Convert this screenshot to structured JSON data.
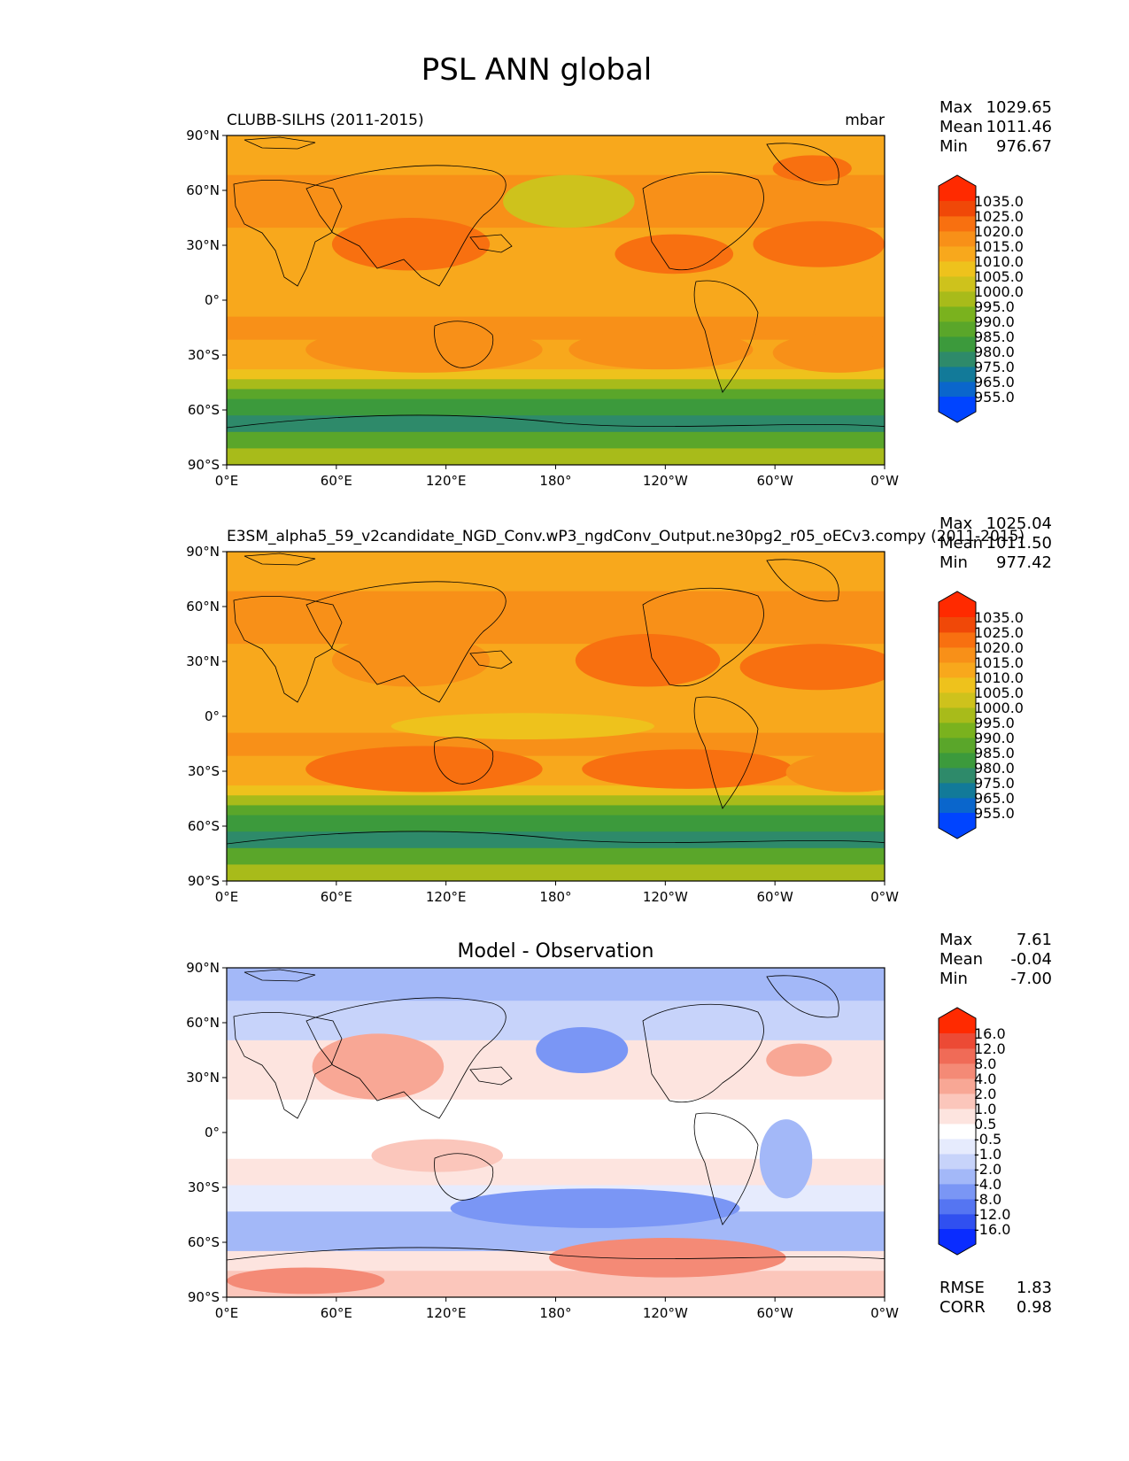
{
  "title": "PSL ANN global",
  "lon_ticks": [
    "0°E",
    "60°E",
    "120°E",
    "180°",
    "120°W",
    "60°W",
    "0°W"
  ],
  "lat_ticks": [
    "90°N",
    "60°N",
    "30°N",
    "0°",
    "30°S",
    "60°S",
    "90°S"
  ],
  "stat_labels": {
    "max": "Max",
    "mean": "Mean",
    "min": "Min",
    "rmse": "RMSE",
    "corr": "CORR"
  },
  "colors": {
    "abs_scale": [
      "#0044ff",
      "#0a66cc",
      "#127a99",
      "#2e8a6a",
      "#3c9a3c",
      "#5aa62a",
      "#7ab21e",
      "#a8bb1a",
      "#cec21c",
      "#eec21c",
      "#f8a81c",
      "#f89018",
      "#f87010",
      "#f04808",
      "#ff2a00"
    ],
    "diff_scale": [
      "#0a2cff",
      "#3050f0",
      "#5575f2",
      "#7a96f5",
      "#a3b8f8",
      "#c7d3fa",
      "#e6ebfd",
      "#ffffff",
      "#fde4df",
      "#fbc6bb",
      "#f8a795",
      "#f48a76",
      "#f06b57",
      "#ec4a35",
      "#ff2a00"
    ]
  },
  "chart_data": [
    {
      "type": "heatmap",
      "panel": "test",
      "title": "CLUBB-SILHS (2011-2015)",
      "units": "mbar",
      "stats": {
        "max": "1029.65",
        "mean": "1011.46",
        "min": "976.67"
      },
      "colorbar_levels": [
        "955.0",
        "965.0",
        "975.0",
        "980.0",
        "985.0",
        "990.0",
        "995.0",
        "1000.0",
        "1005.0",
        "1010.0",
        "1015.0",
        "1020.0",
        "1025.0",
        "1035.0"
      ],
      "xlim": [
        0,
        360
      ],
      "ylim": [
        -90,
        90
      ]
    },
    {
      "type": "heatmap",
      "panel": "reference",
      "title": "E3SM_alpha5_59_v2candidate_NGD_Conv.wP3_ngdConv_Output.ne30pg2_r05_oECv3.compy (2011-2015)",
      "units": "mbar",
      "stats": {
        "max": "1025.04",
        "mean": "1011.50",
        "min": "977.42"
      },
      "colorbar_levels": [
        "955.0",
        "965.0",
        "975.0",
        "980.0",
        "985.0",
        "990.0",
        "995.0",
        "1000.0",
        "1005.0",
        "1010.0",
        "1015.0",
        "1020.0",
        "1025.0",
        "1035.0"
      ],
      "xlim": [
        0,
        360
      ],
      "ylim": [
        -90,
        90
      ]
    },
    {
      "type": "heatmap",
      "panel": "difference",
      "title": "Model - Observation",
      "stats": {
        "max": "7.61",
        "mean": "-0.04",
        "min": "-7.00",
        "rmse": "1.83",
        "corr": "0.98"
      },
      "colorbar_levels": [
        "-16.0",
        "-12.0",
        "-8.0",
        "-4.0",
        "-2.0",
        "-1.0",
        "-0.5",
        "0.5",
        "1.0",
        "2.0",
        "4.0",
        "8.0",
        "12.0",
        "16.0"
      ],
      "xlim": [
        0,
        360
      ],
      "ylim": [
        -90,
        90
      ]
    }
  ]
}
